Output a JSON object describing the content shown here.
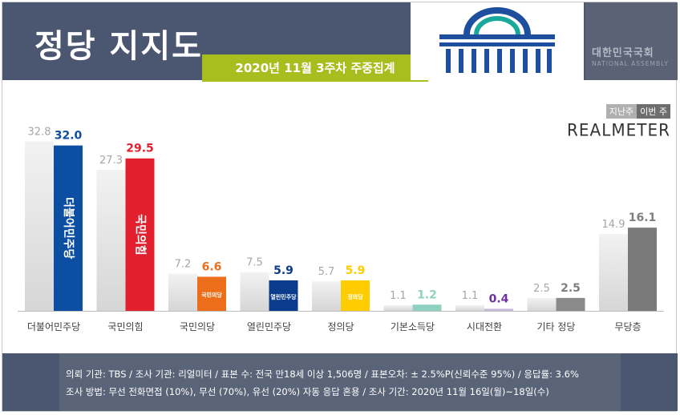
{
  "header": {
    "title": "정당 지지도",
    "subtitle": "2020년 11월 3주차 주중집계",
    "assembly_name_ko": "대한민국국회",
    "assembly_name_en": "NATIONAL ASSEMBLY"
  },
  "legend": {
    "prev": "지난주",
    "cur": "이번 주",
    "brand": "REALMETER"
  },
  "colors": {
    "header_bg": "#4b5671",
    "subtitle_bg": "#a8bd1e",
    "prev_bar": "#d9d9d9",
    "default_cur": "#7f7f7f"
  },
  "chart_data": {
    "type": "bar",
    "categories": [
      "더불어민주당",
      "국민의힘",
      "국민의당",
      "열린민주당",
      "정의당",
      "기본소득당",
      "시대전환",
      "기타 정당",
      "무당층"
    ],
    "series": [
      {
        "name": "지난주",
        "values": [
          32.8,
          27.3,
          7.2,
          7.5,
          5.7,
          1.1,
          1.1,
          2.5,
          14.9
        ]
      },
      {
        "name": "이번 주",
        "values": [
          32.0,
          29.5,
          6.6,
          5.9,
          5.9,
          1.2,
          0.4,
          2.5,
          16.1
        ]
      }
    ],
    "cur_colors": [
      "#0b4ea2",
      "#e21f2d",
      "#ec6d1a",
      "#0a3b8c",
      "#ffcc00",
      "#8fd1c1",
      "#c9b8d8",
      "#8a8a8a",
      "#7a7a7a"
    ],
    "cur_label_colors": [
      "#0b4ea2",
      "#e21f2d",
      "#ec6d1a",
      "#0a3b8c",
      "#ffcc00",
      "#8fd1c1",
      "#7030a0",
      "#7f7f7f",
      "#7f7f7f"
    ],
    "bar_marks": [
      "더불어민주당",
      "국민의힘",
      "국민의당",
      "열린민주당",
      "정의당",
      "",
      "",
      "",
      ""
    ],
    "ylim": [
      0,
      35
    ]
  },
  "footer": {
    "line1": "의뢰 기관:  TBS / 조사 기관:  리얼미터 / 표본 수:  전국 만18세 이상 1,506명 / 표본오차:  ± 2.5%P(신뢰수준  95%) / 응답률:  3.6%",
    "line2": "조사 방법:  무선 전화면접 (10%), 무선 (70%), 유선 (20%)  자동 응답 혼용  / 조사 기간:  2020년 11월 16일(월)~18일(수)"
  }
}
